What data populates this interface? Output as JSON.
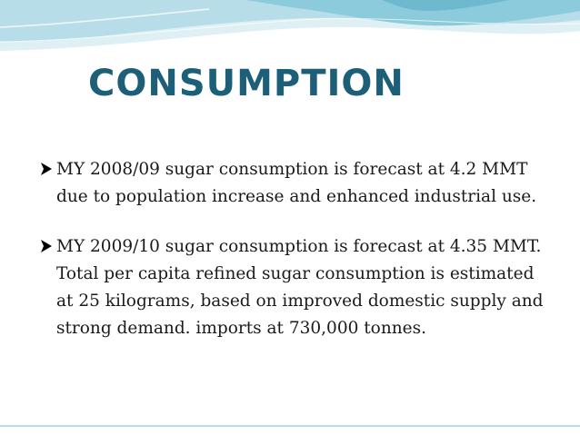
{
  "slide": {
    "title": "CONSUMPTION",
    "bullets": [
      {
        "text": "MY 2008/09 sugar consumption is forecast at 4.2 MMT due to population increase and enhanced industrial use."
      },
      {
        "text": "MY 2009/10 sugar consumption is forecast at 4.35 MMT. Total per capita refined sugar consumption is estimated at 25 kilograms, based on improved domestic supply and strong  demand. imports at 730,000 tonnes."
      }
    ]
  },
  "colors": {
    "title": "#1d5f78",
    "wave_light": "#dff0f4",
    "wave_mid": "#b7dde8",
    "wave_dark": "#6fb9cf",
    "bullet": "#000000"
  },
  "icons": {
    "bullet": "arrowhead-icon"
  }
}
